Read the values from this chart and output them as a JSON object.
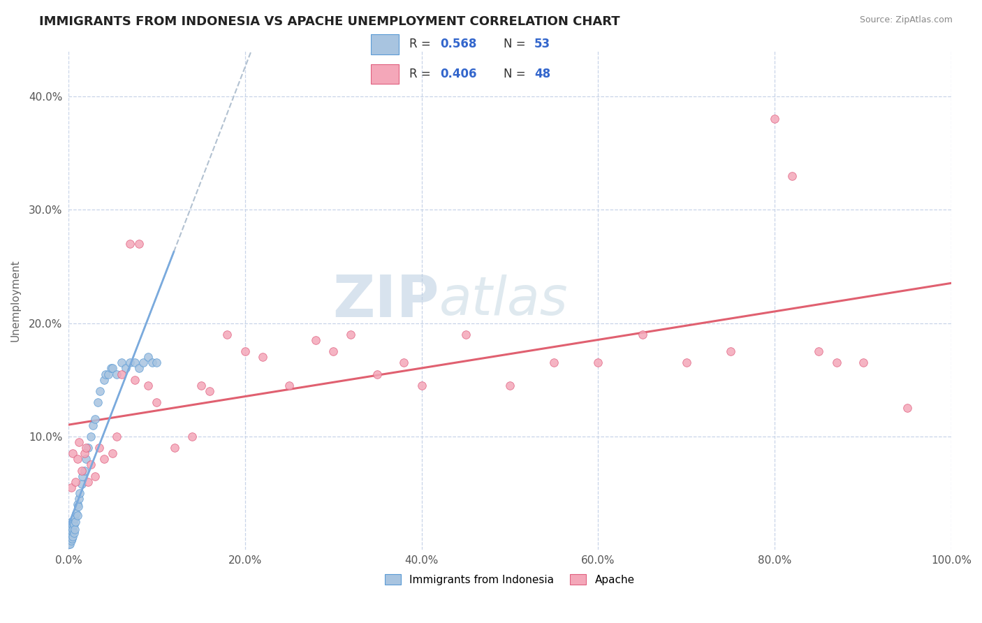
{
  "title": "IMMIGRANTS FROM INDONESIA VS APACHE UNEMPLOYMENT CORRELATION CHART",
  "source": "Source: ZipAtlas.com",
  "ylabel": "Unemployment",
  "legend_label1": "Immigrants from Indonesia",
  "legend_label2": "Apache",
  "R1": 0.568,
  "N1": 53,
  "R2": 0.406,
  "N2": 48,
  "xlim": [
    0,
    1.0
  ],
  "ylim": [
    0,
    0.44
  ],
  "xtick_labels": [
    "0.0%",
    "20.0%",
    "40.0%",
    "60.0%",
    "80.0%",
    "100.0%"
  ],
  "xtick_vals": [
    0,
    0.2,
    0.4,
    0.6,
    0.8,
    1.0
  ],
  "ytick_labels": [
    "10.0%",
    "20.0%",
    "30.0%",
    "40.0%"
  ],
  "ytick_vals": [
    0.1,
    0.2,
    0.3,
    0.4
  ],
  "color_blue": "#a8c4e0",
  "color_pink": "#f4a7b9",
  "edge_blue": "#5b9bd5",
  "edge_pink": "#e06080",
  "trendline_blue_color": "#7aaadd",
  "trendline_pink_color": "#e06070",
  "scatter_blue_x": [
    0.001,
    0.001,
    0.001,
    0.002,
    0.002,
    0.002,
    0.002,
    0.003,
    0.003,
    0.003,
    0.003,
    0.004,
    0.004,
    0.004,
    0.005,
    0.005,
    0.005,
    0.006,
    0.006,
    0.007,
    0.007,
    0.008,
    0.009,
    0.01,
    0.01,
    0.011,
    0.012,
    0.013,
    0.015,
    0.016,
    0.018,
    0.02,
    0.022,
    0.025,
    0.028,
    0.03,
    0.033,
    0.036,
    0.04,
    0.042,
    0.045,
    0.048,
    0.05,
    0.055,
    0.06,
    0.065,
    0.07,
    0.075,
    0.08,
    0.085,
    0.09,
    0.095,
    0.1
  ],
  "scatter_blue_y": [
    0.005,
    0.01,
    0.015,
    0.005,
    0.01,
    0.015,
    0.02,
    0.008,
    0.012,
    0.018,
    0.025,
    0.01,
    0.016,
    0.022,
    0.012,
    0.018,
    0.025,
    0.015,
    0.022,
    0.018,
    0.028,
    0.025,
    0.032,
    0.03,
    0.04,
    0.038,
    0.045,
    0.05,
    0.058,
    0.065,
    0.07,
    0.08,
    0.09,
    0.1,
    0.11,
    0.115,
    0.13,
    0.14,
    0.15,
    0.155,
    0.155,
    0.16,
    0.16,
    0.155,
    0.165,
    0.16,
    0.165,
    0.165,
    0.16,
    0.165,
    0.17,
    0.165,
    0.165
  ],
  "scatter_pink_x": [
    0.003,
    0.005,
    0.008,
    0.01,
    0.012,
    0.015,
    0.018,
    0.02,
    0.022,
    0.025,
    0.03,
    0.035,
    0.04,
    0.05,
    0.055,
    0.06,
    0.07,
    0.075,
    0.08,
    0.09,
    0.1,
    0.12,
    0.14,
    0.15,
    0.16,
    0.18,
    0.2,
    0.22,
    0.25,
    0.28,
    0.3,
    0.32,
    0.35,
    0.38,
    0.4,
    0.45,
    0.5,
    0.55,
    0.6,
    0.65,
    0.7,
    0.75,
    0.8,
    0.82,
    0.85,
    0.87,
    0.9,
    0.95
  ],
  "scatter_pink_y": [
    0.055,
    0.085,
    0.06,
    0.08,
    0.095,
    0.07,
    0.085,
    0.09,
    0.06,
    0.075,
    0.065,
    0.09,
    0.08,
    0.085,
    0.1,
    0.155,
    0.27,
    0.15,
    0.27,
    0.145,
    0.13,
    0.09,
    0.1,
    0.145,
    0.14,
    0.19,
    0.175,
    0.17,
    0.145,
    0.185,
    0.175,
    0.19,
    0.155,
    0.165,
    0.145,
    0.19,
    0.145,
    0.165,
    0.165,
    0.19,
    0.165,
    0.175,
    0.38,
    0.33,
    0.175,
    0.165,
    0.165,
    0.125
  ],
  "watermark_zip": "ZIP",
  "watermark_atlas": "atlas",
  "background_color": "#ffffff",
  "grid_color": "#c8d4e8"
}
